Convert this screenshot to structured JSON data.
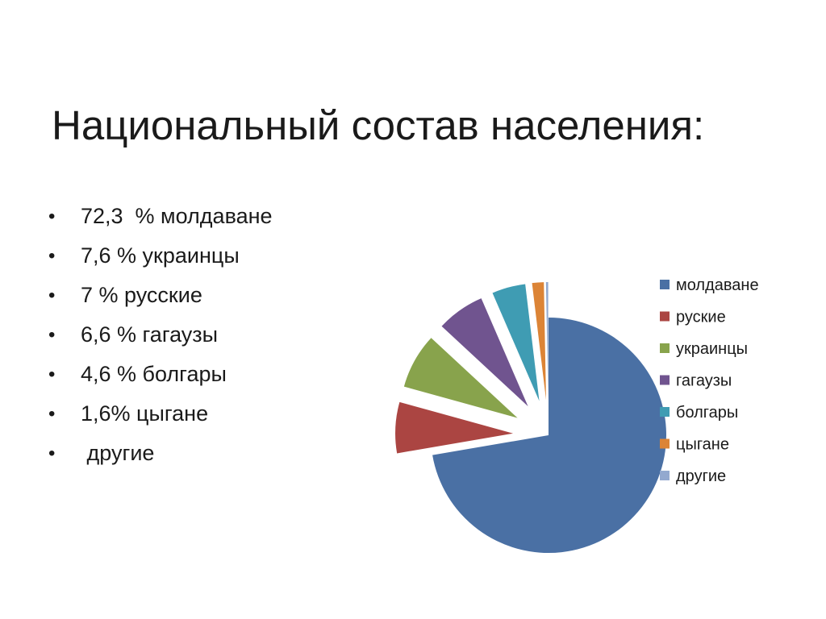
{
  "slide": {
    "title": "Национальный состав населения:",
    "bullets": [
      "72,3  % молдаване",
      "7,6 % украинцы",
      "7 % русские",
      "6,6 % гагаузы",
      "4,6 % болгары",
      "1,6% цыгане",
      " другие"
    ],
    "bullet_glyph": "•"
  },
  "chart_data": {
    "type": "pie",
    "title": "",
    "legend_position": "right",
    "exploded": true,
    "slices": [
      {
        "label": "молдаване",
        "value": 72.3,
        "color": "#4A70A4"
      },
      {
        "label": "руские",
        "value": 7.0,
        "color": "#AB4542"
      },
      {
        "label": "украинцы",
        "value": 7.6,
        "color": "#88A34C"
      },
      {
        "label": "гагаузы",
        "value": 6.6,
        "color": "#70548F"
      },
      {
        "label": "болгары",
        "value": 4.6,
        "color": "#3F9CB3"
      },
      {
        "label": "цыгане",
        "value": 1.6,
        "color": "#DC8436"
      },
      {
        "label": "другие",
        "value": 0.3,
        "color": "#93A9CF"
      }
    ]
  }
}
